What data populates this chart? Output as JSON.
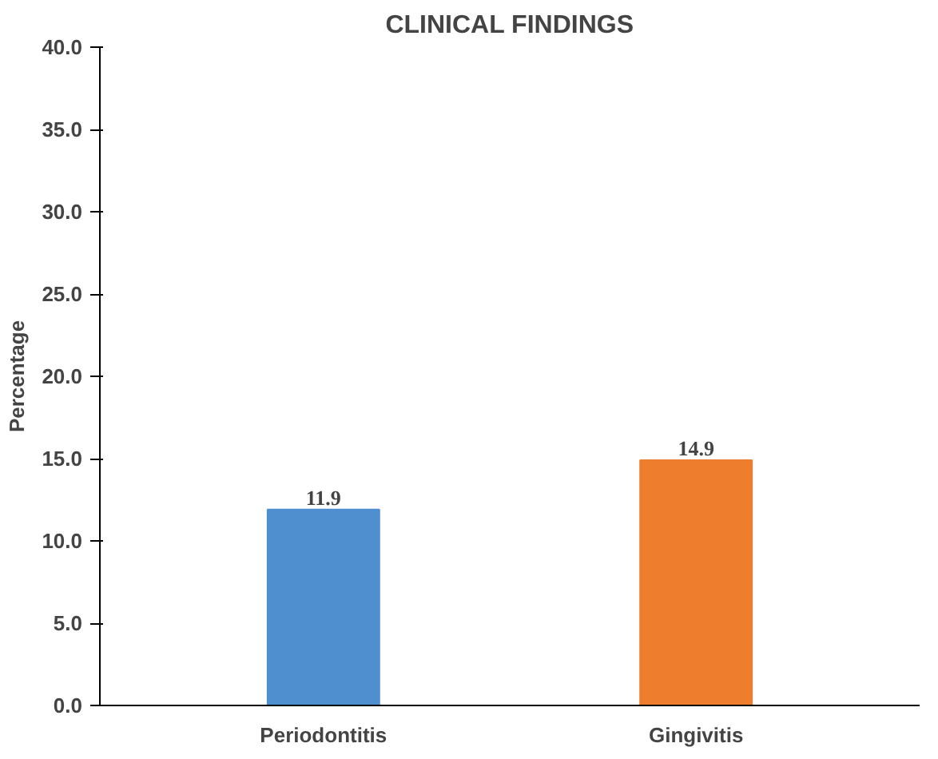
{
  "chart_data": {
    "type": "bar",
    "title": "CLINICAL FINDINGS",
    "ylabel": "Percentage",
    "categories": [
      "Periodontitis",
      "Gingivitis"
    ],
    "values": [
      11.9,
      14.9
    ],
    "colors": [
      "#4f8fd0",
      "#ee7d2e"
    ],
    "ylim": [
      0,
      40
    ],
    "yticks": [
      {
        "value": 0,
        "label": "0.0"
      },
      {
        "value": 5,
        "label": "5.0"
      },
      {
        "value": 10,
        "label": "10.0"
      },
      {
        "value": 15,
        "label": "15.0"
      },
      {
        "value": 20,
        "label": "20.0"
      },
      {
        "value": 25,
        "label": "25.0"
      },
      {
        "value": 30,
        "label": "30.0"
      },
      {
        "value": 35,
        "label": "35.0"
      },
      {
        "value": 40,
        "label": "40.0"
      }
    ],
    "data_labels": true,
    "grid": false
  }
}
